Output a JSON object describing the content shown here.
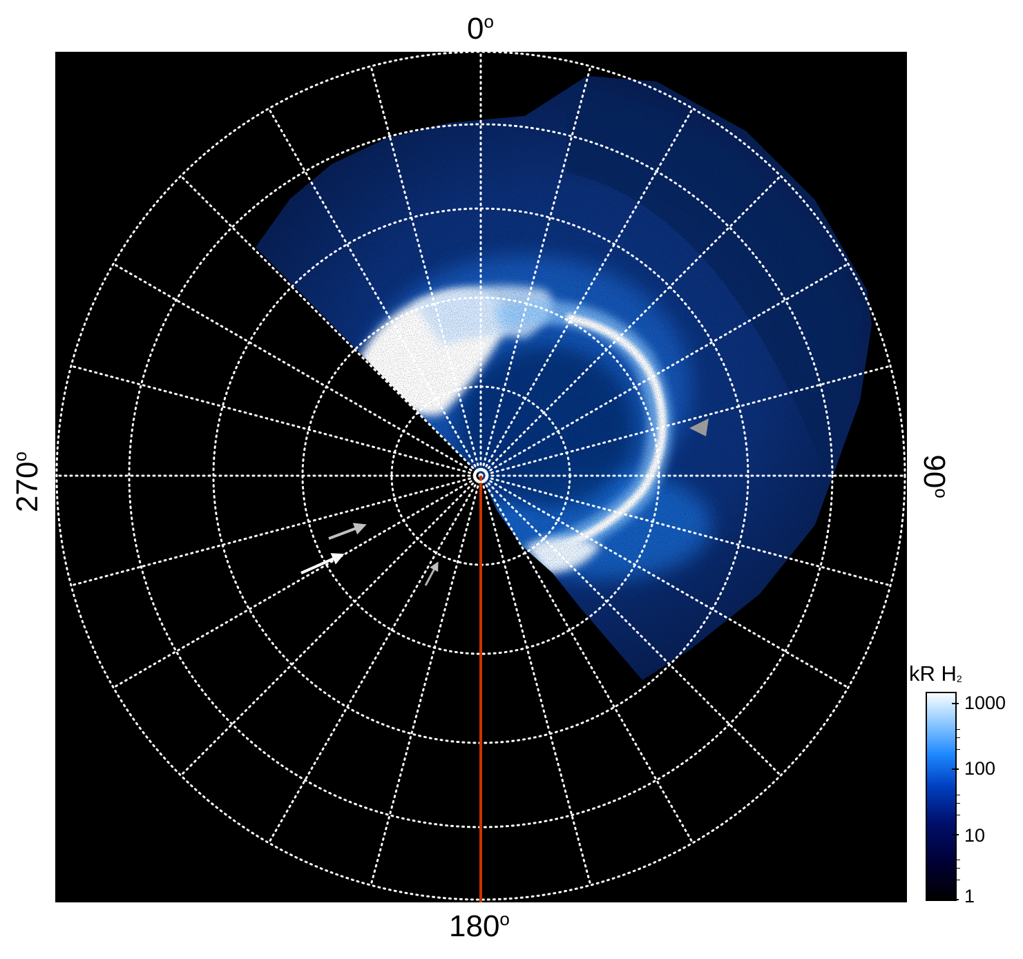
{
  "azimuth_labels": {
    "top": "0",
    "bottom": "180",
    "left": "270",
    "right": "90",
    "degree_symbol": "o"
  },
  "colorbar": {
    "title_main": "kR H",
    "title_subscript": "2",
    "ticks": [
      "1",
      "10",
      "100",
      "1000"
    ],
    "scale": "log",
    "range": [
      1,
      1000
    ],
    "colors": [
      "#000000",
      "#000033",
      "#00106e",
      "#0040c0",
      "#1e88ff",
      "#8cc8ff",
      "#ffffff"
    ]
  },
  "colors": {
    "background": "#000000",
    "grid": "#ffffff",
    "meridian_line": "#cc3300",
    "arrow_white": "#ffffff",
    "arrow_gray": "#c0c0c0",
    "marker_gray": "#999999"
  }
}
